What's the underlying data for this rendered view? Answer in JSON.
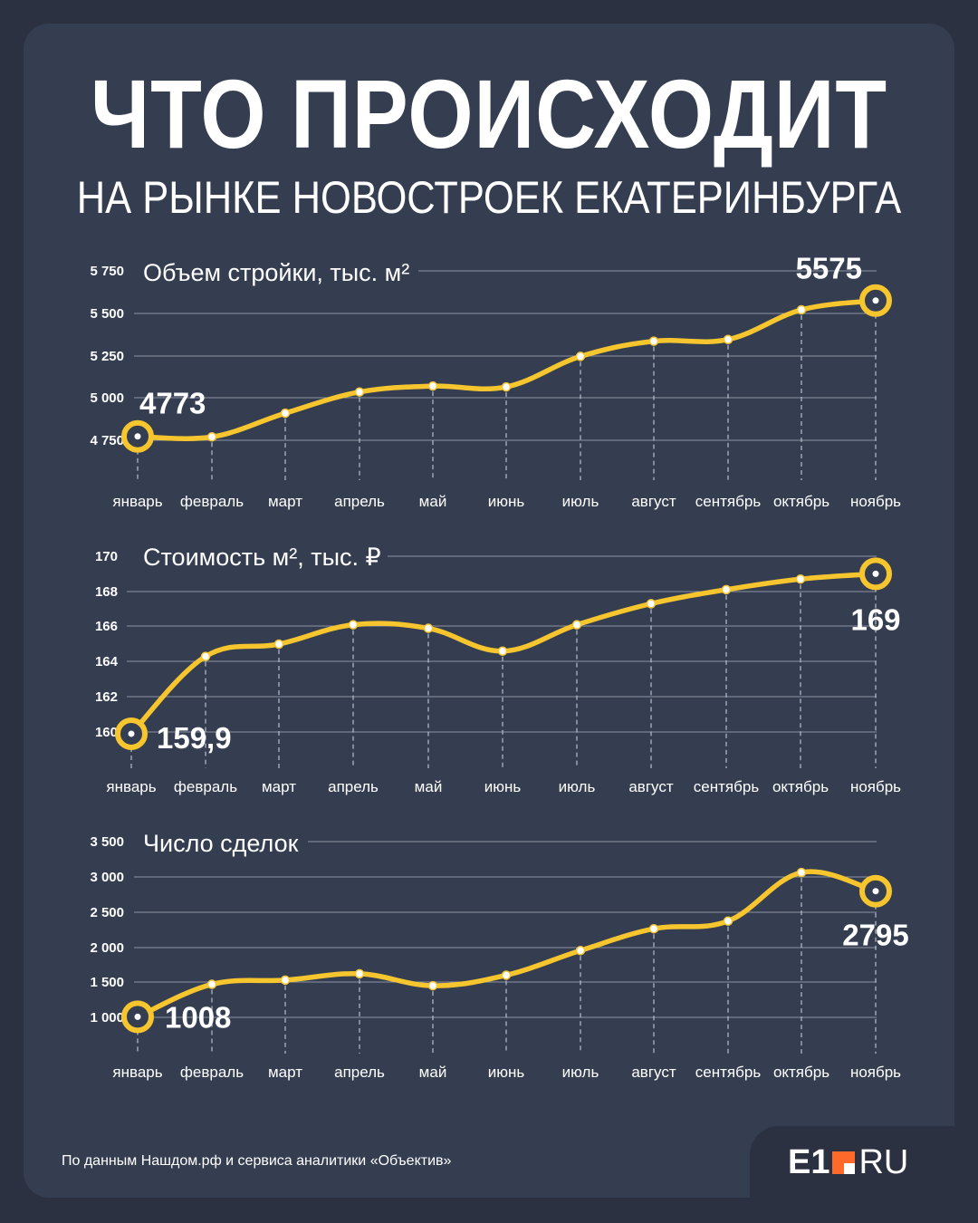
{
  "title": "ЧТО ПРОИСХОДИТ",
  "subtitle": "НА РЫНКЕ НОВОСТРОЕК ЕКАТЕРИНБУРГА",
  "source": "По данным Нашдом.рф и сервиса аналитики «Объектив»",
  "logo": {
    "left": "E1",
    "right": "RU"
  },
  "colors": {
    "line": "#f7c62f",
    "background": "#353e51",
    "outer": "#2b3140",
    "grid": "#8a93a3",
    "logo_accent": "#ff6a2a"
  },
  "chart_data": [
    {
      "type": "line",
      "title": "Объем стройки, тыс. м²",
      "categories": [
        "январь",
        "февраль",
        "март",
        "апрель",
        "май",
        "июнь",
        "июль",
        "август",
        "сентябрь",
        "октябрь",
        "ноябрь"
      ],
      "values": [
        4773,
        4770,
        4910,
        5035,
        5070,
        5065,
        5245,
        5335,
        5345,
        5520,
        5575
      ],
      "yticks": [
        4750,
        5000,
        5250,
        5500,
        5750
      ],
      "ytick_labels": [
        "4 750",
        "5 000",
        "5 250",
        "5 500",
        "5 750"
      ],
      "ylim": [
        4700,
        5750
      ],
      "annotations": [
        {
          "index": 0,
          "text": "4773"
        },
        {
          "index": 10,
          "text": "5575"
        }
      ]
    },
    {
      "type": "line",
      "title": "Стоимость м², тыс. ₽",
      "categories": [
        "январь",
        "февраль",
        "март",
        "апрель",
        "май",
        "июнь",
        "июль",
        "август",
        "сентябрь",
        "октябрь",
        "ноябрь"
      ],
      "values": [
        159.9,
        164.3,
        165.0,
        166.1,
        165.9,
        164.6,
        166.1,
        167.3,
        168.1,
        168.7,
        169.0
      ],
      "yticks": [
        160,
        162,
        164,
        166,
        168,
        170
      ],
      "ytick_labels": [
        "160",
        "162",
        "164",
        "166",
        "168",
        "170"
      ],
      "ylim": [
        159.5,
        170
      ],
      "annotations": [
        {
          "index": 0,
          "text": "159,9"
        },
        {
          "index": 10,
          "text": "169"
        }
      ]
    },
    {
      "type": "line",
      "title": "Число сделок",
      "categories": [
        "январь",
        "февраль",
        "март",
        "апрель",
        "май",
        "июнь",
        "июль",
        "август",
        "сентябрь",
        "октябрь",
        "ноябрь"
      ],
      "values": [
        1008,
        1470,
        1530,
        1620,
        1450,
        1600,
        1950,
        2260,
        2370,
        3060,
        2795
      ],
      "yticks": [
        1000,
        1500,
        2000,
        2500,
        3000,
        3500
      ],
      "ytick_labels": [
        "1 000",
        "1 500",
        "2 000",
        "2 500",
        "3 000",
        "3 500"
      ],
      "ylim": [
        900,
        3500
      ],
      "annotations": [
        {
          "index": 0,
          "text": "1008"
        },
        {
          "index": 10,
          "text": "2795"
        }
      ]
    }
  ]
}
